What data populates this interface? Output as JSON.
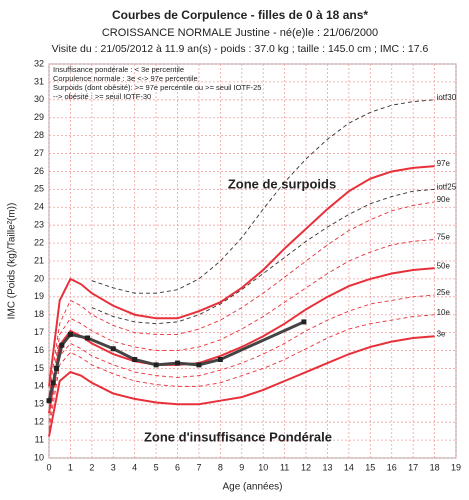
{
  "chart_data": {
    "type": "line",
    "title": "Courbes de Corpulence - filles de 0 à  18 ans*",
    "subtitle": "CROISSANCE NORMALE Justine - né(e)le : 21/06/2000",
    "info": "Visite du : 21/05/2012 à  11.9 an(s) - poids : 37.0 kg ; taille : 145.0 cm ; IMC : 17.6",
    "legend_notes": [
      "Insuffisance pondérale : < 3e percentile",
      "Corpulence normale : 3e <-> 97e percentile",
      "Surpoids (dont obésité): >= 97e percentile ou >= seuil IOTF-25",
      "--> obésité : >= seuil IOTF-30"
    ],
    "zones": [
      "Zone de surpoids",
      "Zone d'insuffisance Pondérale"
    ],
    "x_label": "Age (années)",
    "y_label": "IMC (Poids (kg)/Taille²(m))",
    "xlim": [
      0,
      19
    ],
    "ylim": [
      10,
      32
    ],
    "xticks": [
      0,
      1,
      2,
      3,
      4,
      5,
      6,
      7,
      8,
      9,
      10,
      11,
      12,
      13,
      14,
      15,
      16,
      17,
      18,
      19
    ],
    "yticks": [
      10,
      11,
      12,
      13,
      14,
      15,
      16,
      17,
      18,
      19,
      20,
      21,
      22,
      23,
      24,
      25,
      26,
      27,
      28,
      29,
      30,
      31,
      32
    ],
    "grid": true,
    "x": [
      0,
      0.5,
      1,
      1.5,
      2,
      3,
      4,
      5,
      6,
      7,
      8,
      9,
      10,
      11,
      12,
      13,
      14,
      15,
      16,
      17,
      18
    ],
    "series": [
      {
        "name": "iotf30",
        "color": "#333333",
        "dashed": true,
        "values": [
          null,
          null,
          null,
          null,
          19.9,
          19.5,
          19.2,
          19.2,
          19.4,
          20,
          21,
          22.3,
          23.9,
          25.4,
          26.7,
          27.8,
          28.7,
          29.3,
          29.7,
          29.9,
          30
        ]
      },
      {
        "name": "97e",
        "color": "#e8303a",
        "dashed": false,
        "values": [
          14,
          18.8,
          20,
          19.7,
          19.2,
          18.5,
          18,
          17.8,
          17.8,
          18.2,
          18.7,
          19.5,
          20.5,
          21.7,
          22.8,
          23.9,
          24.9,
          25.6,
          26,
          26.2,
          26.3
        ]
      },
      {
        "name": "iotf25",
        "color": "#333333",
        "dashed": true,
        "values": [
          null,
          null,
          null,
          null,
          18.4,
          17.9,
          17.6,
          17.5,
          17.6,
          18,
          18.6,
          19.4,
          20.3,
          21.2,
          22.1,
          22.9,
          23.6,
          24.2,
          24.6,
          24.9,
          25
        ]
      },
      {
        "name": "90e",
        "color": "#e8303a",
        "dashed": true,
        "values": [
          13.5,
          17.5,
          18.8,
          18.5,
          18,
          17.4,
          17,
          16.9,
          16.9,
          17.2,
          17.7,
          18.4,
          19.2,
          20.1,
          21,
          21.9,
          22.7,
          23.3,
          23.8,
          24.1,
          24.3
        ]
      },
      {
        "name": "75e",
        "color": "#e8303a",
        "dashed": true,
        "values": [
          13,
          16.9,
          17.8,
          17.5,
          17.1,
          16.5,
          16.2,
          16,
          16,
          16.2,
          16.6,
          17.2,
          17.9,
          18.7,
          19.5,
          20.3,
          21,
          21.5,
          21.9,
          22.1,
          22.2
        ]
      },
      {
        "name": "50e",
        "color": "#e8303a",
        "dashed": false,
        "values": [
          12.5,
          16.3,
          17.1,
          16.8,
          16.4,
          15.8,
          15.4,
          15.2,
          15.2,
          15.3,
          15.7,
          16.2,
          16.8,
          17.5,
          18.3,
          19,
          19.6,
          20,
          20.3,
          20.5,
          20.6
        ]
      },
      {
        "name": "25e",
        "color": "#e8303a",
        "dashed": true,
        "values": [
          12,
          15.7,
          16.4,
          16.1,
          15.7,
          15.2,
          14.8,
          14.6,
          14.5,
          14.6,
          14.9,
          15.3,
          15.8,
          16.4,
          17.1,
          17.7,
          18.2,
          18.6,
          18.8,
          19,
          19.1
        ]
      },
      {
        "name": "10e",
        "color": "#e8303a",
        "dashed": true,
        "values": [
          11.6,
          15.2,
          15.9,
          15.6,
          15.2,
          14.7,
          14.3,
          14.1,
          14,
          14,
          14.2,
          14.6,
          15,
          15.5,
          16.1,
          16.7,
          17.2,
          17.5,
          17.7,
          17.9,
          18
        ]
      },
      {
        "name": "3e",
        "color": "#e8303a",
        "dashed": false,
        "values": [
          11.2,
          14.3,
          14.8,
          14.6,
          14.2,
          13.6,
          13.3,
          13.1,
          13,
          13,
          13.2,
          13.4,
          13.8,
          14.3,
          14.8,
          15.3,
          15.8,
          16.2,
          16.5,
          16.7,
          16.8
        ]
      }
    ],
    "patient": {
      "color": "#444444",
      "x": [
        0,
        0.2,
        0.35,
        0.6,
        1,
        1.8,
        3,
        4,
        5,
        6,
        7,
        8,
        11.9
      ],
      "values": [
        13.2,
        14.2,
        15,
        16.3,
        16.9,
        16.7,
        16.1,
        15.5,
        15.2,
        15.3,
        15.2,
        15.5,
        17.6
      ]
    }
  }
}
